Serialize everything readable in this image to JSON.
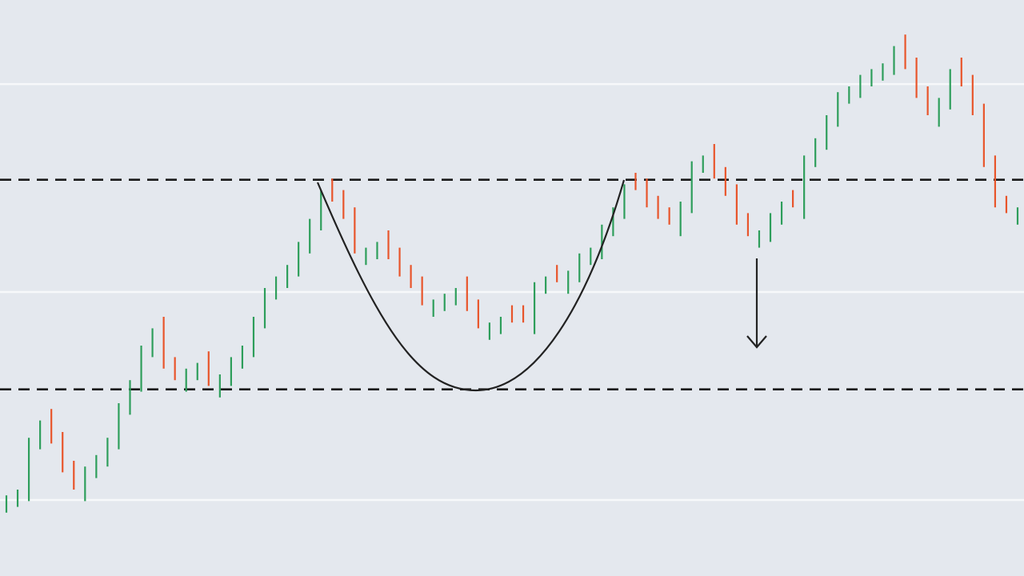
{
  "chart_data": {
    "type": "ohlc",
    "open": [
      11,
      12,
      13,
      22,
      29,
      25,
      20,
      13,
      17,
      19,
      22,
      28,
      32,
      38,
      45,
      38,
      32,
      34,
      39,
      31,
      33,
      36,
      38,
      43,
      48,
      50,
      52,
      56,
      60,
      69,
      67,
      64,
      54,
      55,
      60,
      57,
      54,
      52,
      45,
      46,
      47,
      52,
      48,
      41,
      42,
      47,
      47,
      42,
      49,
      54,
      49,
      51,
      54,
      55,
      59,
      62,
      70,
      69,
      66,
      64,
      59,
      63,
      70,
      75,
      71,
      68,
      63,
      57,
      58,
      61,
      67,
      62,
      71,
      74,
      78,
      82,
      83,
      85,
      86,
      87,
      94,
      90,
      85,
      78,
      81,
      90,
      87,
      82,
      73,
      66,
      61
    ],
    "close": [
      14,
      15,
      24,
      27,
      23,
      18,
      15,
      19,
      21,
      24,
      30,
      34,
      40,
      43,
      36,
      34,
      36,
      37,
      33,
      35,
      38,
      40,
      45,
      50,
      52,
      54,
      58,
      62,
      67,
      65,
      62,
      56,
      57,
      58,
      55,
      52,
      50,
      47,
      48,
      49,
      50,
      46,
      43,
      44,
      45,
      44,
      44,
      51,
      52,
      51,
      53,
      56,
      57,
      61,
      64,
      68,
      67,
      64,
      62,
      61,
      65,
      72,
      73,
      69,
      66,
      61,
      59,
      60,
      63,
      65,
      64,
      73,
      76,
      80,
      84,
      85,
      87,
      88,
      89,
      92,
      88,
      83,
      80,
      83,
      88,
      85,
      80,
      71,
      64,
      63,
      64
    ],
    "up_color": "#2e9e5b",
    "down_color": "#e8552b",
    "ylim": [
      0,
      100
    ],
    "yticks": [
      13.2,
      49.3,
      85.4
    ],
    "grid": true,
    "levels": [
      68.8,
      32.4
    ]
  }
}
